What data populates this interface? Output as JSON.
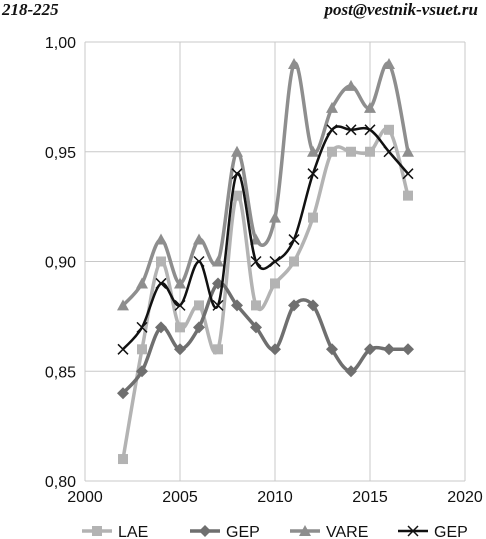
{
  "header": {
    "left": "218-225",
    "right": "post@vestnik-vsuet.ru"
  },
  "chart_data": {
    "type": "line",
    "title": "",
    "xlabel": "",
    "ylabel": "",
    "xlim": [
      2000,
      2020
    ],
    "ylim": [
      0.8,
      1.0
    ],
    "x_ticks": [
      "2000",
      "2005",
      "2010",
      "2015",
      "2020"
    ],
    "y_ticks": [
      "0,80",
      "0,85",
      "0,90",
      "0,95",
      "1,00"
    ],
    "grid": "vertical and horizontal",
    "legend_position": "bottom",
    "x": [
      2002,
      2003,
      2004,
      2005,
      2006,
      2007,
      2008,
      2009,
      2010,
      2011,
      2012,
      2013,
      2014,
      2015,
      2016,
      2017
    ],
    "series": [
      {
        "name": "LAE",
        "marker": "square",
        "color": "#b3b3b3",
        "values": [
          0.81,
          0.86,
          0.9,
          0.87,
          0.88,
          0.86,
          0.93,
          0.88,
          0.89,
          0.9,
          0.92,
          0.95,
          0.95,
          0.95,
          0.96,
          0.93
        ]
      },
      {
        "name": "GEP",
        "marker": "diamond",
        "color": "#6f6f6f",
        "values": [
          0.84,
          0.85,
          0.87,
          0.86,
          0.87,
          0.89,
          0.88,
          0.87,
          0.86,
          0.88,
          0.88,
          0.86,
          0.85,
          0.86,
          0.86,
          0.86
        ]
      },
      {
        "name": "VARE",
        "marker": "triangle",
        "color": "#8e8e8e",
        "values": [
          0.88,
          0.89,
          0.91,
          0.89,
          0.91,
          0.9,
          0.95,
          0.91,
          0.92,
          0.99,
          0.95,
          0.97,
          0.98,
          0.97,
          0.99,
          0.95
        ]
      },
      {
        "name": "GEP",
        "marker": "x",
        "color": "#111111",
        "values": [
          0.86,
          0.87,
          0.89,
          0.88,
          0.9,
          0.88,
          0.94,
          0.9,
          0.9,
          0.91,
          0.94,
          0.96,
          0.96,
          0.96,
          0.95,
          0.94
        ]
      }
    ]
  }
}
